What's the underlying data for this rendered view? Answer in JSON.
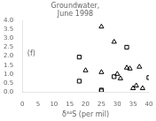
{
  "chart_data": {
    "type": "scatter",
    "title": "Groundwater,\nJune 1998",
    "xlabel": "δ³⁴S (per mil)",
    "annotations": [
      "(f)"
    ],
    "xlim": [
      0,
      40
    ],
    "ylim": [
      0.0,
      4.0
    ],
    "xticks": [
      0,
      5,
      10,
      15,
      20,
      25,
      30,
      35,
      40
    ],
    "yticks": [
      {
        "value": 0,
        "label": "0.0"
      },
      0.5,
      {
        "value": 1,
        "label": "1.0"
      },
      1.5,
      {
        "value": 2,
        "label": "2.0"
      },
      2.5,
      {
        "value": 3,
        "label": "3.0"
      },
      3.5,
      {
        "value": 4,
        "label": "4.0"
      }
    ],
    "grid": false,
    "series": [
      {
        "marker": "triangle",
        "color": "#000000",
        "x": [
          25,
          20,
          25,
          29,
          30,
          31,
          33,
          34,
          35,
          36,
          37,
          38
        ],
        "values": [
          3.65,
          1.2,
          1.1,
          2.8,
          1.0,
          0.75,
          1.35,
          1.3,
          0.2,
          0.35,
          1.4,
          0.2
        ]
      },
      {
        "marker": "square",
        "color": "#000000",
        "x": [
          18,
          18,
          25,
          25,
          29,
          33,
          40
        ],
        "values": [
          1.95,
          0.6,
          0.1,
          0.05,
          0.85,
          2.5,
          0.8
        ]
      }
    ]
  }
}
